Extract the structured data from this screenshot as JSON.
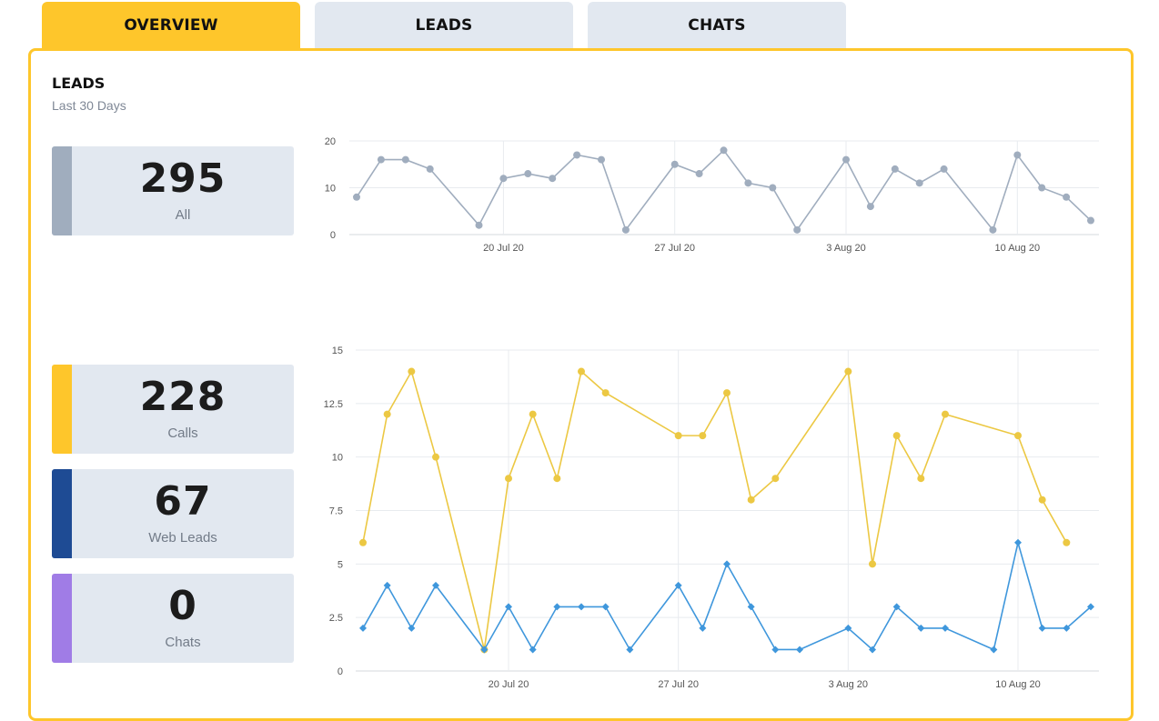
{
  "tabs": [
    {
      "label": "OVERVIEW",
      "active": true
    },
    {
      "label": "LEADS",
      "active": false
    },
    {
      "label": "CHATS",
      "active": false
    }
  ],
  "section": {
    "title": "LEADS",
    "subtitle": "Last 30 Days"
  },
  "stats": [
    {
      "value": "295",
      "label": "All",
      "color": "#a0adbe"
    },
    {
      "value": "228",
      "label": "Calls",
      "color": "#fec62b"
    },
    {
      "value": "67",
      "label": "Web Leads",
      "color": "#1e4b94"
    },
    {
      "value": "0",
      "label": "Chats",
      "color": "#a07ce6"
    }
  ],
  "chart_data": [
    {
      "type": "line",
      "x": [
        "2020-07-14",
        "2020-07-15",
        "2020-07-16",
        "2020-07-17",
        "2020-07-19",
        "2020-07-20",
        "2020-07-21",
        "2020-07-22",
        "2020-07-23",
        "2020-07-24",
        "2020-07-25",
        "2020-07-27",
        "2020-07-28",
        "2020-07-29",
        "2020-07-30",
        "2020-07-31",
        "2020-08-01",
        "2020-08-03",
        "2020-08-04",
        "2020-08-05",
        "2020-08-06",
        "2020-08-07",
        "2020-08-09",
        "2020-08-10",
        "2020-08-11",
        "2020-08-12",
        "2020-08-13"
      ],
      "x_ticks": [
        "20 Jul 20",
        "27 Jul 20",
        "3 Aug 20",
        "10 Aug 20"
      ],
      "y_ticks": [
        "0",
        "10",
        "20"
      ],
      "ylim": [
        0,
        20
      ],
      "grid": true,
      "series": [
        {
          "values": [
            8,
            16,
            16,
            14,
            2,
            12,
            13,
            12,
            17,
            16,
            1,
            15,
            13,
            18,
            11,
            10,
            1,
            16,
            6,
            14,
            11,
            14,
            1,
            17,
            10,
            8,
            3
          ],
          "color": "#a0adbe",
          "marker": "circle"
        }
      ]
    },
    {
      "type": "line",
      "x": [
        "2020-07-14",
        "2020-07-15",
        "2020-07-16",
        "2020-07-17",
        "2020-07-19",
        "2020-07-20",
        "2020-07-21",
        "2020-07-22",
        "2020-07-23",
        "2020-07-24",
        "2020-07-25",
        "2020-07-27",
        "2020-07-28",
        "2020-07-29",
        "2020-07-30",
        "2020-07-31",
        "2020-08-01",
        "2020-08-03",
        "2020-08-04",
        "2020-08-05",
        "2020-08-06",
        "2020-08-07",
        "2020-08-09",
        "2020-08-10",
        "2020-08-11",
        "2020-08-12",
        "2020-08-13"
      ],
      "x_ticks": [
        "20 Jul 20",
        "27 Jul 20",
        "3 Aug 20",
        "10 Aug 20"
      ],
      "y_ticks": [
        "0",
        "2.5",
        "5",
        "7.5",
        "10",
        "12.5",
        "15"
      ],
      "ylim": [
        0,
        15
      ],
      "grid": true,
      "series": [
        {
          "values": [
            6,
            12,
            14,
            10,
            1,
            9,
            12,
            9,
            14,
            13,
            null,
            11,
            11,
            13,
            8,
            9,
            null,
            14,
            5,
            11,
            9,
            12,
            null,
            11,
            8,
            6,
            null
          ],
          "color": "#ecc843",
          "marker": "circle"
        },
        {
          "values": [
            2,
            4,
            2,
            4,
            1,
            3,
            1,
            3,
            3,
            3,
            1,
            4,
            2,
            5,
            3,
            1,
            1,
            2,
            1,
            3,
            2,
            2,
            1,
            6,
            2,
            2,
            3
          ],
          "color": "#3f97dc",
          "marker": "diamond"
        }
      ]
    }
  ]
}
